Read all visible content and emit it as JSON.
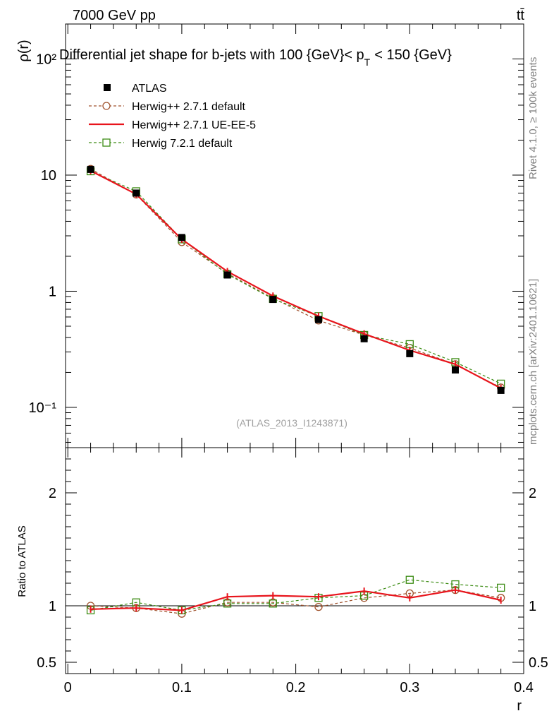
{
  "header": {
    "energy_label": "7000 GeV pp",
    "process_label": "tt̄",
    "title": "Differential jet shape for b-jets with 100 {GeV}< p",
    "title_sub": "T",
    "title_end": "< 150 {GeV}",
    "side_rivet": "Rivet 4.1.0, ≥ 100k events",
    "side_site": "mcplots.cern.ch [arXiv:2401.10621]",
    "analysis_id": "(ATLAS_2013_I1243871)"
  },
  "chart_data": {
    "type": "line",
    "xlabel": "r",
    "ylabel_main": "ρ(r)",
    "ylabel_ratio": "Ratio to ATLAS",
    "xlim": [
      -0.002,
      0.4
    ],
    "ylim_main": [
      0.045,
      200
    ],
    "ylim_ratio": [
      0.4,
      2.4
    ],
    "x_ticks": [
      "0",
      "0.1",
      "0.2",
      "0.3",
      "0.4"
    ],
    "y_ticks_main": [
      "10⁻¹",
      "1",
      "10",
      "10²"
    ],
    "y_ticks_ratio": [
      "0.5",
      "1",
      "2"
    ],
    "x": [
      0.02,
      0.06,
      0.1,
      0.14,
      0.18,
      0.22,
      0.26,
      0.3,
      0.34,
      0.38
    ],
    "series": [
      {
        "name": "ATLAS",
        "color": "#000000",
        "style": "data",
        "values": [
          11.2,
          7.0,
          2.9,
          1.38,
          0.85,
          0.57,
          0.39,
          0.29,
          0.21,
          0.14
        ],
        "ratio": [
          1.0,
          1.0,
          1.0,
          1.0,
          1.0,
          1.0,
          1.0,
          1.0,
          1.0,
          1.0
        ]
      },
      {
        "name": "Herwig++ 2.7.1 default",
        "color": "#a0522d",
        "style": "dashed-circle",
        "values": [
          11.3,
          6.8,
          2.65,
          1.42,
          0.87,
          0.56,
          0.42,
          0.325,
          0.235,
          0.148
        ],
        "ratio": [
          1.0,
          0.98,
          0.93,
          1.03,
          1.03,
          0.99,
          1.07,
          1.11,
          1.14,
          1.07
        ]
      },
      {
        "name": "Herwig++ 2.7.1 UE-EE-5",
        "color": "#e8141c",
        "style": "solid",
        "values": [
          10.9,
          6.85,
          2.8,
          1.48,
          0.91,
          0.61,
          0.43,
          0.31,
          0.235,
          0.146
        ],
        "ratio": [
          0.97,
          0.98,
          0.96,
          1.08,
          1.09,
          1.08,
          1.13,
          1.07,
          1.14,
          1.05
        ]
      },
      {
        "name": "Herwig 7.2.1 default",
        "color": "#3c8c14",
        "style": "dashed-square",
        "values": [
          10.8,
          7.25,
          2.8,
          1.4,
          0.86,
          0.61,
          0.42,
          0.35,
          0.245,
          0.16
        ],
        "ratio": [
          0.96,
          1.03,
          0.96,
          1.02,
          1.02,
          1.07,
          1.09,
          1.23,
          1.19,
          1.16
        ]
      }
    ]
  }
}
